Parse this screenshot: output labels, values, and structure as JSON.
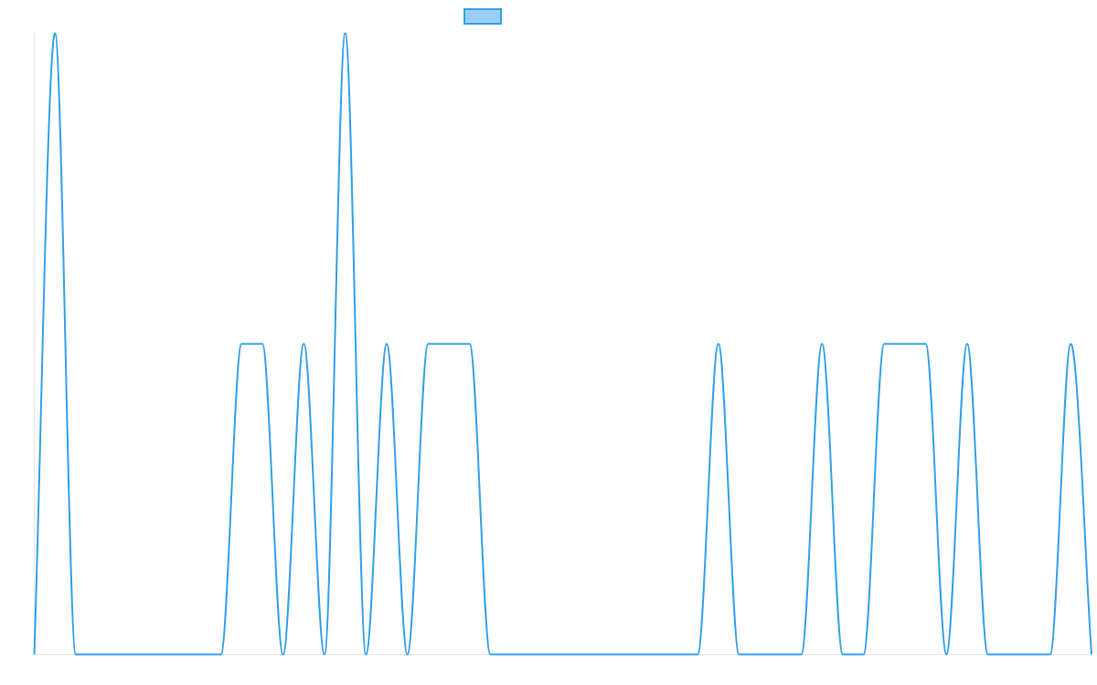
{
  "chart_data": {
    "type": "line",
    "title": "",
    "xlabel": "",
    "ylabel": "",
    "x": [
      0,
      1,
      2,
      3,
      4,
      5,
      6,
      7,
      8,
      9,
      10,
      11,
      12,
      13,
      14,
      15,
      16,
      17,
      18,
      19,
      20,
      21,
      22,
      23,
      24,
      25,
      26,
      27,
      28,
      29,
      30,
      31,
      32,
      33,
      34,
      35,
      36,
      37,
      38,
      39,
      40,
      41,
      42,
      43,
      44,
      45,
      46,
      47,
      48,
      49,
      50,
      51
    ],
    "ylim": [
      0,
      2
    ],
    "xlim": [
      0,
      51
    ],
    "grid": false,
    "legend": {
      "position": "top-center"
    },
    "series": [
      {
        "name": "",
        "color": "#36a2eb",
        "fill": "#9ad0f5",
        "values": [
          0,
          2,
          0,
          0,
          0,
          0,
          0,
          0,
          0,
          0,
          1,
          1,
          0,
          1,
          0,
          2,
          0,
          1,
          0,
          1,
          1,
          1,
          0,
          0,
          0,
          0,
          0,
          0,
          0,
          0,
          0,
          0,
          0,
          1,
          0,
          0,
          0,
          0,
          1,
          0,
          0,
          1,
          1,
          1,
          0,
          1,
          0,
          0,
          0,
          0,
          1,
          0
        ]
      }
    ]
  }
}
